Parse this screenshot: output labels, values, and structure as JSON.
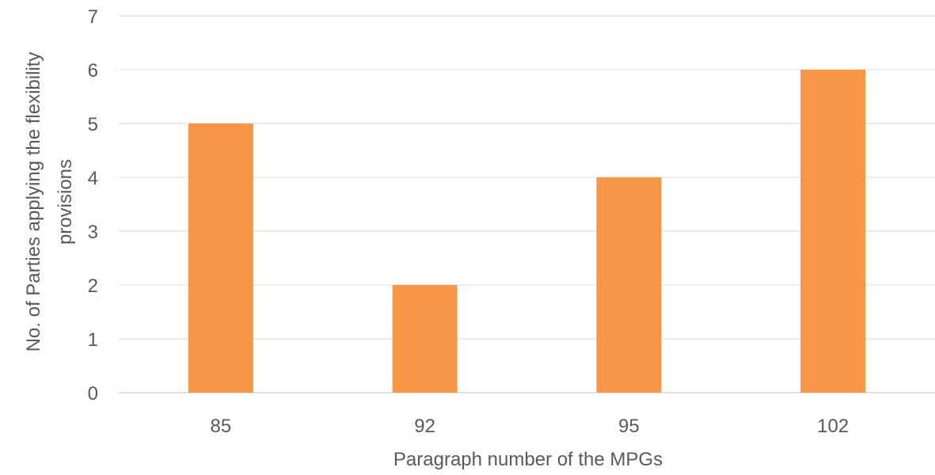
{
  "chart_data": {
    "type": "bar",
    "categories": [
      "85",
      "92",
      "95",
      "102"
    ],
    "values": [
      5,
      2,
      4,
      6
    ],
    "title": "",
    "xlabel": "Paragraph number of the MPGs",
    "ylabel_lines": [
      "No. of Parties applying the flexibility",
      "provisions"
    ],
    "ylim": [
      0,
      7
    ],
    "yticks": [
      "0",
      "1",
      "2",
      "3",
      "4",
      "5",
      "6",
      "7"
    ],
    "grid": true,
    "legend": "none",
    "bar_color": "#F79646",
    "grid_color": "#D9D9D9",
    "text_color": "#595959"
  }
}
